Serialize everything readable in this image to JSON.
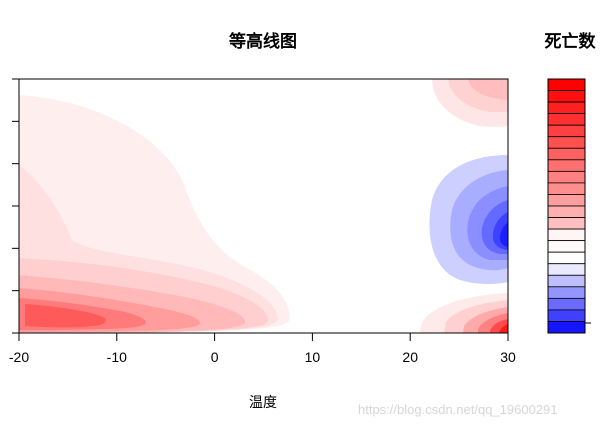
{
  "chart_data": {
    "type": "heatmap",
    "subtype": "filled-contour",
    "title": "等高线图",
    "xlabel": "温度",
    "ylabel": "",
    "colorbar_title": "死亡数",
    "xlim": [
      -20,
      30
    ],
    "x_ticks": [
      -20,
      -10,
      0,
      10,
      20,
      30
    ],
    "x_tick_labels": [
      "-20",
      "-10",
      "0",
      "10",
      "20",
      "30"
    ],
    "y_tick_count": 7,
    "grid": false,
    "color_scale": {
      "low": "#0000ff",
      "mid": "#ffffff",
      "high": "#ff0000",
      "levels_below_white": 6,
      "levels_above_white": 16
    }
  },
  "watermark": "https://blog.csdn.net/qq_19600291"
}
